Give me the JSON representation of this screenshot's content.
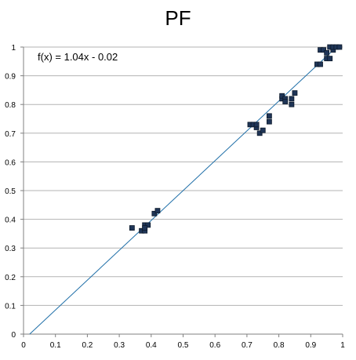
{
  "chart_data": {
    "type": "scatter",
    "title": "PF",
    "xlabel": "",
    "ylabel": "",
    "xlim": [
      0,
      1
    ],
    "ylim": [
      0,
      1
    ],
    "x_ticks": [
      "0",
      "0.1",
      "0.2",
      "0.3",
      "0.4",
      "0.5",
      "0.6",
      "0.7",
      "0.8",
      "0.9",
      "1"
    ],
    "y_ticks": [
      "0",
      "0.1",
      "0.2",
      "0.3",
      "0.4",
      "0.5",
      "0.6",
      "0.7",
      "0.8",
      "0.9",
      "1"
    ],
    "grid": "horizontal",
    "legend": "none",
    "trendline": {
      "label": "f(x) = 1.04x - 0.02",
      "slope": 1.04,
      "intercept": -0.02
    },
    "series": [
      {
        "points": [
          [
            0.34,
            0.37
          ],
          [
            0.37,
            0.36
          ],
          [
            0.38,
            0.36
          ],
          [
            0.38,
            0.38
          ],
          [
            0.39,
            0.38
          ],
          [
            0.38,
            0.37
          ],
          [
            0.41,
            0.42
          ],
          [
            0.42,
            0.43
          ],
          [
            0.71,
            0.73
          ],
          [
            0.72,
            0.73
          ],
          [
            0.73,
            0.72
          ],
          [
            0.73,
            0.73
          ],
          [
            0.74,
            0.7
          ],
          [
            0.75,
            0.71
          ],
          [
            0.77,
            0.76
          ],
          [
            0.77,
            0.74
          ],
          [
            0.81,
            0.82
          ],
          [
            0.81,
            0.83
          ],
          [
            0.82,
            0.82
          ],
          [
            0.82,
            0.81
          ],
          [
            0.84,
            0.8
          ],
          [
            0.84,
            0.82
          ],
          [
            0.85,
            0.84
          ],
          [
            0.92,
            0.94
          ],
          [
            0.93,
            0.94
          ],
          [
            0.93,
            0.99
          ],
          [
            0.94,
            0.99
          ],
          [
            0.95,
            0.98
          ],
          [
            0.95,
            0.96
          ],
          [
            0.96,
            0.96
          ],
          [
            0.96,
            1.0
          ],
          [
            0.97,
            0.99
          ],
          [
            0.97,
            1.0
          ],
          [
            0.98,
            1.0
          ],
          [
            0.99,
            1.0
          ]
        ]
      }
    ],
    "colors": {
      "marker": "#1f3557",
      "trendline": "#1f6fa8",
      "grid": "#b3b3b3",
      "axis": "#808080",
      "text": "#000000"
    }
  }
}
